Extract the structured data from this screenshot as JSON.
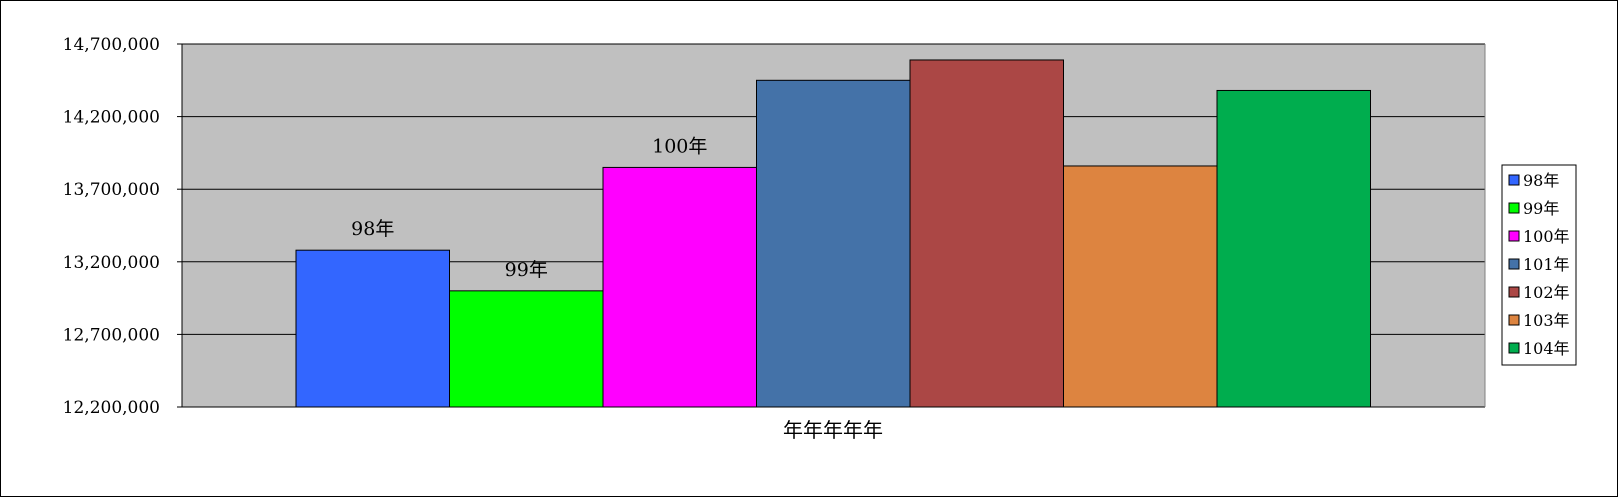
{
  "chart_data": {
    "type": "bar",
    "title": "",
    "xlabel": "年年年年年",
    "ylabel": "",
    "ylim": [
      12200000,
      14700000
    ],
    "yticks": [
      12200000,
      12700000,
      13200000,
      13700000,
      14200000,
      14700000
    ],
    "ytick_labels": [
      "12,200,000",
      "12,700,000",
      "13,200,000",
      "13,700,000",
      "14,200,000",
      "14,700,000"
    ],
    "grid": true,
    "legend_position": "right",
    "plot_background": "#c0c0c0",
    "series": [
      {
        "name": "98年",
        "value": 13280000,
        "color": "#3366ff",
        "data_label": "98年"
      },
      {
        "name": "99年",
        "value": 13000000,
        "color": "#00ff00",
        "data_label": "99年"
      },
      {
        "name": "100年",
        "value": 13850000,
        "color": "#ff00ff",
        "data_label": "100年"
      },
      {
        "name": "101年",
        "value": 14450000,
        "color": "#4472a8",
        "data_label": ""
      },
      {
        "name": "102年",
        "value": 14590000,
        "color": "#ab4745",
        "data_label": ""
      },
      {
        "name": "103年",
        "value": 13860000,
        "color": "#dd8440",
        "data_label": ""
      },
      {
        "name": "104年",
        "value": 14380000,
        "color": "#00ad4e",
        "data_label": ""
      }
    ]
  }
}
